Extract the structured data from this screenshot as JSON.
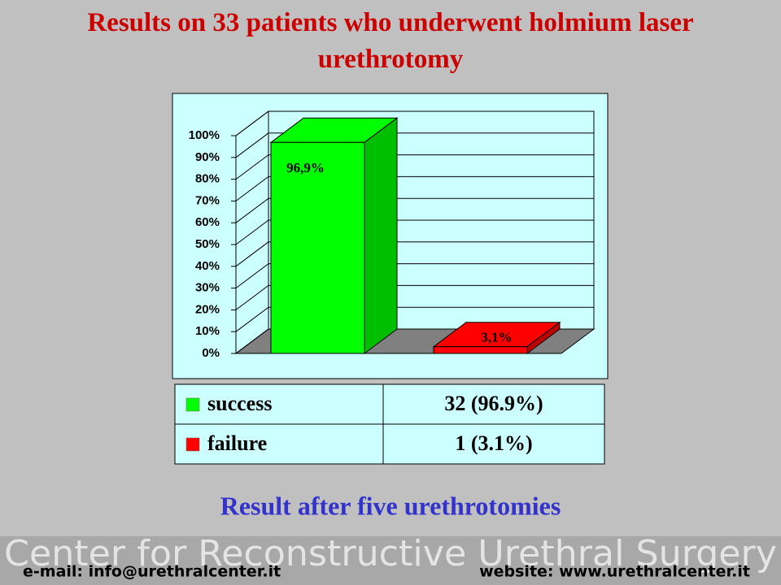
{
  "chart_data": {
    "type": "bar",
    "title": "Results on 33 patients who underwent holmium laser urethrotomy",
    "categories": [
      null,
      null
    ],
    "values": [
      96.9,
      3.1
    ],
    "value_labels": [
      "96,9%",
      "3,1%"
    ],
    "colors": [
      "#00ff00",
      "#ff0000"
    ],
    "ylim": [
      0,
      100
    ],
    "yticks": [
      {
        "value": 0,
        "label": "0%"
      },
      {
        "value": 10,
        "label": "10%"
      },
      {
        "value": 20,
        "label": "20%"
      },
      {
        "value": 30,
        "label": "30%"
      },
      {
        "value": 40,
        "label": "40%"
      },
      {
        "value": 50,
        "label": "50%"
      },
      {
        "value": 60,
        "label": "60%"
      },
      {
        "value": 70,
        "label": "70%"
      },
      {
        "value": 80,
        "label": "80%"
      },
      {
        "value": 90,
        "label": "90%"
      },
      {
        "value": 100,
        "label": "100%"
      }
    ],
    "grid": true
  },
  "table": {
    "rows": [
      [
        "success",
        "32 (96.9%)"
      ],
      [
        "failure",
        "1 (3.1%)"
      ]
    ]
  },
  "subtitle": "Result after five urethrotomies",
  "footer": {
    "banner": "Center for Reconstructive Urethral Surgery",
    "email": "e-mail: info@urethralcenter.it",
    "website": "website: www.urethralcenter.it"
  }
}
